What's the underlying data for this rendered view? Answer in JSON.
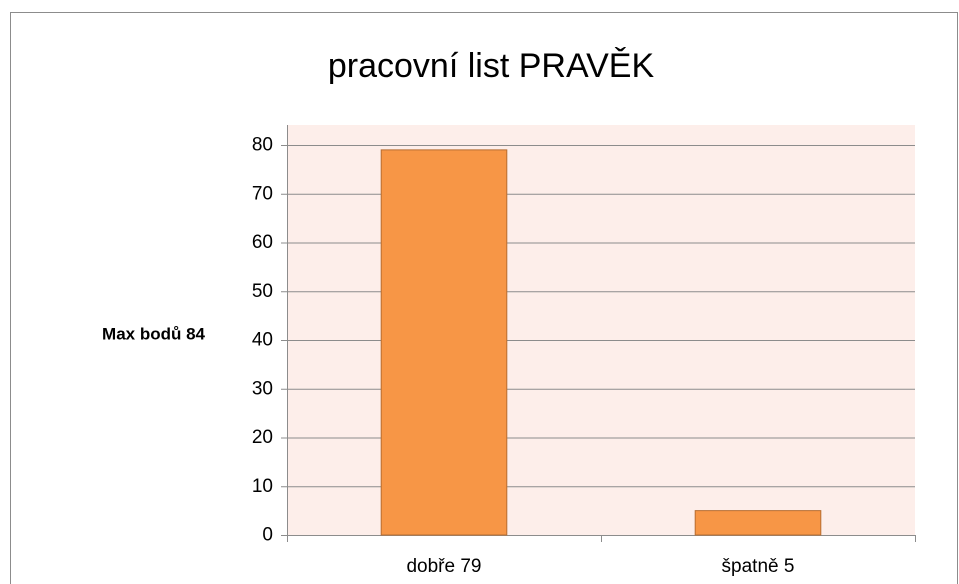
{
  "chart_data": {
    "type": "bar",
    "title": "pracovní list PRAVĚK",
    "y_label": "Max bodů 84",
    "categories": [
      "dobře 79",
      "špatně 5"
    ],
    "values": [
      79,
      5
    ],
    "color": "#f79646",
    "ylim": [
      0,
      80
    ],
    "yticks": [
      0,
      10,
      20,
      30,
      40,
      50,
      60,
      70,
      80
    ],
    "grid": true
  }
}
